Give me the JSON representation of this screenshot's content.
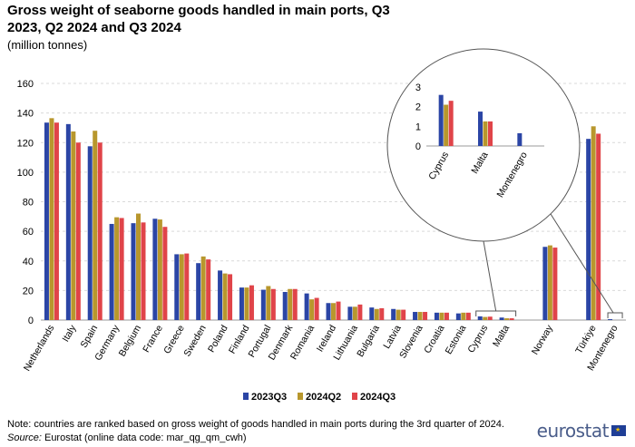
{
  "title": "Gross weight of seaborne goods handled in main ports, Q3 2023, Q2 2024 and Q3 2024",
  "subtitle": "(million tonnes)",
  "note": "Note: countries are ranked based on gross weight of goods handled in main ports during the 3rd quarter of 2024.",
  "source_label": "Source:",
  "source_text": " Eurostat (online data code: mar_qg_qm_cwh)",
  "brand": "eurostat",
  "colors": {
    "2023Q3": "#2b45a5",
    "2024Q2": "#b8972d",
    "2024Q3": "#e04449"
  },
  "chart_data": {
    "type": "bar",
    "title": "Gross weight of seaborne goods handled in main ports, Q3 2023, Q2 2024 and Q3 2024",
    "ylabel": "",
    "xlabel": "",
    "ylim": [
      0,
      160
    ],
    "yticks": [
      0,
      20,
      40,
      60,
      80,
      100,
      120,
      140,
      160
    ],
    "grid": true,
    "legend": "bottom",
    "categories": [
      "Netherlands",
      "Italy",
      "Spain",
      "Germany",
      "Belgium",
      "France",
      "Greece",
      "Sweden",
      "Poland",
      "Finland",
      "Portugal",
      "Denmark",
      "Romania",
      "Ireland",
      "Lithuania",
      "Bulgaria",
      "Latvia",
      "Slovenia",
      "Croatia",
      "Estonia",
      "Cyprus",
      "Malta",
      "",
      "Norway",
      "",
      "Türkiye",
      "Montenegro"
    ],
    "series": [
      {
        "name": "2023Q3",
        "values": [
          133.5,
          132.5,
          117.5,
          65,
          65.5,
          68.5,
          44.5,
          38.5,
          33.5,
          22,
          20.5,
          19,
          18,
          11.5,
          9,
          8.5,
          7.5,
          5.5,
          5,
          4.5,
          2.5,
          1.7,
          null,
          49.5,
          null,
          122.5,
          0.6
        ]
      },
      {
        "name": "2024Q2",
        "values": [
          136.5,
          127.5,
          128,
          69.5,
          72,
          68,
          44.5,
          43,
          31.5,
          22,
          23,
          21,
          14,
          11.5,
          9,
          7.5,
          7,
          5.5,
          5,
          5,
          2.1,
          1.2,
          null,
          50.5,
          null,
          131,
          0
        ]
      },
      {
        "name": "2024Q3",
        "values": [
          133.5,
          120,
          120,
          69,
          66,
          63,
          45,
          41,
          31,
          23.5,
          21,
          21,
          15,
          12.5,
          10.5,
          8,
          7,
          5.5,
          5,
          5,
          2.3,
          1.2,
          null,
          49,
          null,
          126,
          0
        ]
      }
    ],
    "inset": {
      "categories": [
        "Cyprus",
        "Malta",
        "Montenegro"
      ],
      "ylim": [
        0,
        3
      ],
      "yticks": [
        0,
        1,
        2,
        3
      ],
      "series": [
        {
          "name": "2023Q3",
          "values": [
            2.6,
            1.75,
            0.65
          ]
        },
        {
          "name": "2024Q2",
          "values": [
            2.1,
            1.25,
            0
          ]
        },
        {
          "name": "2024Q3",
          "values": [
            2.3,
            1.25,
            0
          ]
        }
      ]
    }
  }
}
